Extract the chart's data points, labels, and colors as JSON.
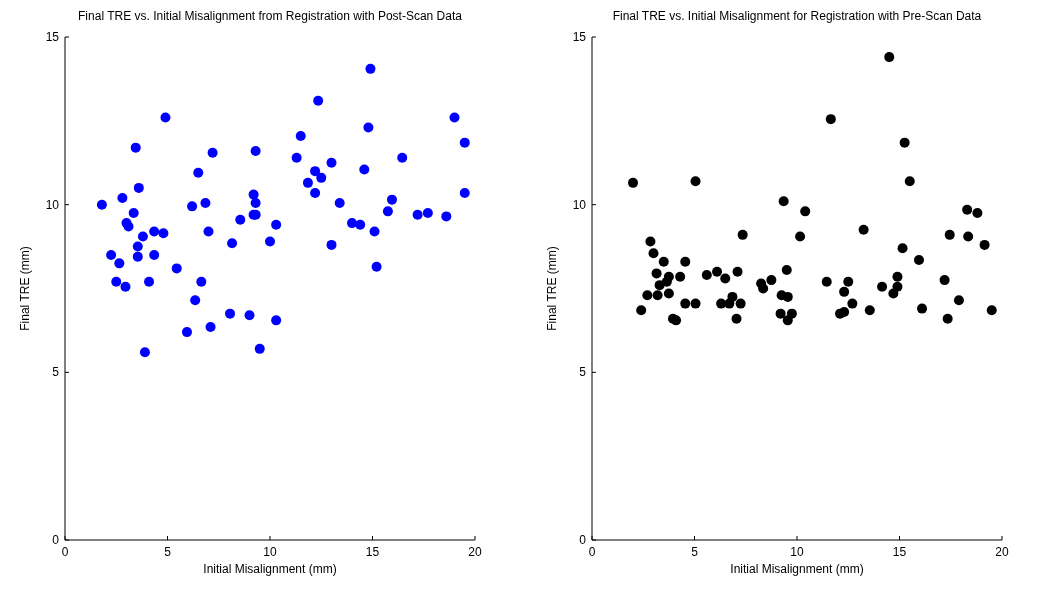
{
  "chart_data": [
    {
      "type": "scatter",
      "title": "Final TRE vs. Initial Misalignment from Registration with Post-Scan Data",
      "xlabel": "Initial Misalignment (mm)",
      "ylabel": "Final TRE (mm)",
      "xlim": [
        0,
        20
      ],
      "ylim": [
        0,
        15
      ],
      "xticks": [
        0,
        5,
        10,
        15,
        20
      ],
      "yticks": [
        0,
        5,
        10,
        15
      ],
      "marker": "circle",
      "series": [
        {
          "color": "#0000ff",
          "x": [
            1.8,
            2.8,
            3.6,
            3.45,
            4.9,
            3.35,
            3.0,
            3.1,
            3.8,
            4.35,
            4.8,
            3.55,
            3.55,
            4.35,
            2.25,
            2.65,
            2.5,
            2.95,
            4.1,
            3.9,
            5.45,
            6.2,
            6.5,
            6.85,
            7.2,
            7.0,
            6.65,
            6.35,
            5.95,
            7.1,
            8.05,
            8.15,
            8.55,
            9.0,
            9.2,
            9.3,
            9.2,
            9.3,
            9.3,
            9.5,
            10.0,
            10.3,
            10.3,
            11.3,
            11.5,
            12.35,
            12.2,
            12.5,
            11.85,
            12.2,
            13.0,
            13.4,
            13.0,
            14.0,
            14.4,
            14.6,
            14.8,
            14.9,
            15.1,
            15.2,
            15.75,
            15.95,
            16.45,
            17.2,
            17.7,
            18.6,
            19.0,
            19.5,
            19.5
          ],
          "values": [
            10.0,
            10.2,
            10.5,
            11.7,
            12.6,
            9.75,
            9.45,
            9.35,
            9.05,
            9.2,
            9.15,
            8.75,
            8.45,
            8.5,
            8.5,
            8.25,
            7.7,
            7.55,
            7.7,
            5.6,
            8.1,
            9.95,
            10.95,
            10.05,
            11.55,
            9.2,
            7.7,
            7.15,
            6.2,
            6.35,
            6.75,
            8.85,
            9.55,
            6.7,
            10.3,
            10.05,
            9.7,
            9.7,
            11.6,
            5.7,
            8.9,
            9.4,
            6.55,
            11.4,
            12.05,
            13.1,
            11.0,
            10.8,
            10.65,
            10.35,
            11.25,
            10.05,
            8.8,
            9.45,
            9.4,
            11.05,
            12.3,
            14.05,
            9.2,
            8.15,
            9.8,
            10.15,
            11.4,
            9.7,
            9.75,
            9.65,
            12.6,
            11.85,
            10.35
          ]
        }
      ]
    },
    {
      "type": "scatter",
      "title": "Final TRE vs. Initial Misalignment for Registration with Pre-Scan Data",
      "xlabel": "Initial Misalignment (mm)",
      "ylabel": "Final TRE (mm)",
      "xlim": [
        0,
        20
      ],
      "ylim": [
        0,
        15
      ],
      "xticks": [
        0,
        5,
        10,
        15,
        20
      ],
      "yticks": [
        0,
        5,
        10,
        15
      ],
      "marker": "circle",
      "series": [
        {
          "color": "#000000",
          "x": [
            2.0,
            5.05,
            15.5,
            9.35,
            10.4,
            18.3,
            18.8,
            7.35,
            10.15,
            13.25,
            17.45,
            18.35,
            19.15,
            15.15,
            15.95,
            2.85,
            3.0,
            3.5,
            4.55,
            3.15,
            3.75,
            3.65,
            4.3,
            3.3,
            2.7,
            3.2,
            3.75,
            2.4,
            3.95,
            4.1,
            4.55,
            5.05,
            5.6,
            6.1,
            6.5,
            7.1,
            6.3,
            6.85,
            6.7,
            7.25,
            7.05,
            8.25,
            8.35,
            8.75,
            9.5,
            9.25,
            9.55,
            9.2,
            9.75,
            9.55,
            11.45,
            12.5,
            12.3,
            12.7,
            12.1,
            12.3,
            13.55,
            14.15,
            14.9,
            14.9,
            14.7,
            16.1,
            17.2,
            17.9,
            17.35,
            19.5,
            11.65,
            14.5,
            15.25
          ],
          "values": [
            10.65,
            10.7,
            10.7,
            10.1,
            9.8,
            9.85,
            9.75,
            9.1,
            9.05,
            9.25,
            9.1,
            9.05,
            8.8,
            8.7,
            8.35,
            8.9,
            8.55,
            8.3,
            8.3,
            7.95,
            7.85,
            7.7,
            7.85,
            7.6,
            7.3,
            7.3,
            7.35,
            6.85,
            6.6,
            6.55,
            7.05,
            7.05,
            7.9,
            8.0,
            7.8,
            8.0,
            7.05,
            7.25,
            7.05,
            7.05,
            6.6,
            7.65,
            7.5,
            7.75,
            8.05,
            7.3,
            7.25,
            6.75,
            6.75,
            6.55,
            7.7,
            7.7,
            7.4,
            7.05,
            6.75,
            6.8,
            6.85,
            7.55,
            7.85,
            7.55,
            7.35,
            6.9,
            7.75,
            7.15,
            6.6,
            6.85,
            12.55,
            14.4,
            11.85
          ]
        }
      ]
    }
  ]
}
